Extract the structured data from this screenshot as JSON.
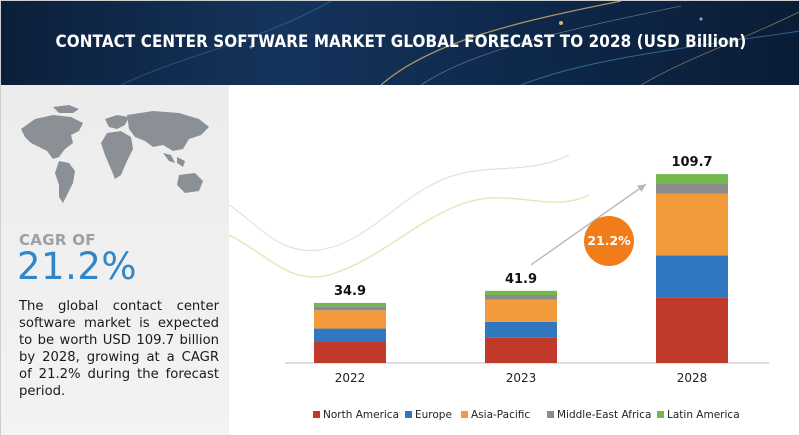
{
  "header": {
    "title": "CONTACT CENTER SOFTWARE MARKET GLOBAL FORECAST TO 2028 (USD Billion)"
  },
  "left_panel": {
    "cagr_label": "CAGR OF",
    "cagr_value": "21.2%",
    "description": "The global contact center software market is expected to be worth USD 109.7 billion by 2028, growing at a CAGR of 21.2% during the forecast period."
  },
  "colors": {
    "north_america": "#c0392b",
    "europe": "#2f78c0",
    "asia_pacific": "#f39b3c",
    "middle_east_africa": "#8c8c8c",
    "latin_america": "#72b84a",
    "badge": "#f07d1a",
    "accent": "#2f86c8"
  },
  "chart_data": {
    "type": "bar",
    "stacked": true,
    "categories": [
      "2022",
      "2023",
      "2028"
    ],
    "totals": [
      "34.9",
      "41.9",
      "109.7"
    ],
    "series": [
      {
        "name": "North America",
        "values": [
          12.2,
          14.6,
          38.2
        ]
      },
      {
        "name": "Europe",
        "values": [
          7.8,
          9.3,
          24.3
        ]
      },
      {
        "name": "Asia-Pacific",
        "values": [
          10.6,
          12.9,
          35.8
        ]
      },
      {
        "name": "Middle-East Africa",
        "values": [
          2.3,
          2.7,
          6.0
        ]
      },
      {
        "name": "Latin America",
        "values": [
          2.0,
          2.4,
          5.4
        ]
      }
    ],
    "ylim": [
      0,
      115
    ],
    "legend": "bottom",
    "grid": false,
    "annotation": {
      "text": "21.2%"
    }
  }
}
